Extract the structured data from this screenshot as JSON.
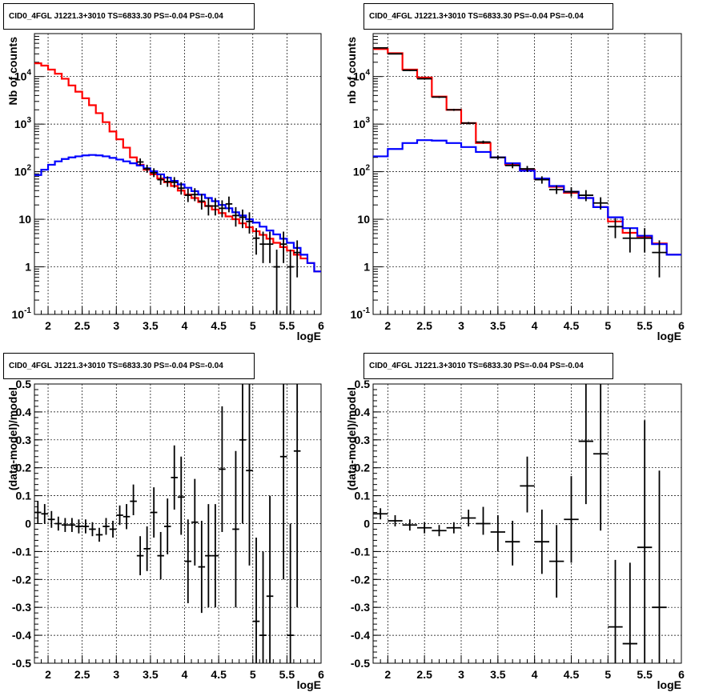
{
  "chart_data": [
    {
      "type": "step-line",
      "title": "CID0_4FGL J1221.3+3010 TS=6833.30 PS=-0.04 PS=-0.04",
      "xlabel": "logE",
      "ylabel": "Nb of counts",
      "yscale": "log",
      "xlim": [
        1.8,
        6.0
      ],
      "ylim": [
        0.1,
        80000
      ],
      "xticks": [
        "2",
        "2.5",
        "3",
        "3.5",
        "4",
        "4.5",
        "5",
        "5.5",
        "6"
      ],
      "yticks": [
        {
          "v": 0.1,
          "t": "10^-1"
        },
        {
          "v": 1,
          "t": "1"
        },
        {
          "v": 10,
          "t": "10"
        },
        {
          "v": 100,
          "t": "10^2"
        },
        {
          "v": 1000,
          "t": "10^3"
        },
        {
          "v": 10000,
          "t": "10^4"
        }
      ],
      "grid": true,
      "series": [
        {
          "color": "#ff0000",
          "edges": [
            1.8,
            1.9,
            2.0,
            2.1,
            2.2,
            2.3,
            2.4,
            2.5,
            2.6,
            2.7,
            2.8,
            2.9,
            3.0,
            3.1,
            3.2,
            3.3,
            3.4,
            3.5,
            3.6,
            3.7,
            3.8,
            3.9,
            4.0,
            4.1,
            4.2,
            4.3,
            4.4,
            4.5,
            4.6,
            4.7,
            4.8,
            4.9,
            5.0,
            5.1,
            5.2,
            5.3,
            5.4,
            5.5,
            5.6,
            5.7,
            5.8,
            5.9,
            6.0
          ],
          "values": [
            19000,
            17000,
            14000,
            11500,
            9000,
            6500,
            4800,
            3500,
            2500,
            1700,
            1100,
            700,
            480,
            320,
            200,
            140,
            110,
            88,
            72,
            60,
            50,
            40,
            33,
            28,
            23,
            19,
            16,
            13.5,
            11.5,
            10,
            8.2,
            6.8,
            5.6,
            4.7,
            3.9,
            3.2,
            2.6,
            2.2,
            1.8,
            1.5,
            1.2,
            0.8
          ]
        },
        {
          "color": "#0000ff",
          "edges": [
            1.8,
            1.9,
            2.0,
            2.1,
            2.2,
            2.3,
            2.4,
            2.5,
            2.6,
            2.7,
            2.8,
            2.9,
            3.0,
            3.1,
            3.2,
            3.3,
            3.4,
            3.5,
            3.6,
            3.7,
            3.8,
            3.9,
            4.0,
            4.1,
            4.2,
            4.3,
            4.4,
            4.5,
            4.6,
            4.7,
            4.8,
            4.9,
            5.0,
            5.1,
            5.2,
            5.3,
            5.4,
            5.5,
            5.6,
            5.7,
            5.8,
            5.9,
            6.0
          ],
          "values": [
            85,
            110,
            140,
            165,
            185,
            200,
            210,
            220,
            225,
            220,
            210,
            195,
            180,
            165,
            150,
            135,
            118,
            102,
            88,
            75,
            64,
            54,
            46,
            39,
            33,
            28,
            24,
            20,
            17,
            14,
            12,
            10,
            8.5,
            7,
            5.8,
            4.8,
            3.9,
            3.2,
            2.5,
            1.8,
            1.2,
            0.8
          ]
        }
      ],
      "points": [
        {
          "x": 3.35,
          "y": 160,
          "lo": 135,
          "hi": 190
        },
        {
          "x": 3.45,
          "y": 115,
          "lo": 95,
          "hi": 140
        },
        {
          "x": 3.55,
          "y": 95,
          "lo": 77,
          "hi": 118
        },
        {
          "x": 3.65,
          "y": 68,
          "lo": 53,
          "hi": 86
        },
        {
          "x": 3.75,
          "y": 62,
          "lo": 48,
          "hi": 80
        },
        {
          "x": 3.85,
          "y": 60,
          "lo": 46,
          "hi": 77
        },
        {
          "x": 3.95,
          "y": 45,
          "lo": 33,
          "hi": 60
        },
        {
          "x": 4.05,
          "y": 32,
          "lo": 23,
          "hi": 44
        },
        {
          "x": 4.15,
          "y": 33,
          "lo": 24,
          "hi": 45
        },
        {
          "x": 4.25,
          "y": 24,
          "lo": 16,
          "hi": 34
        },
        {
          "x": 4.35,
          "y": 19,
          "lo": 12,
          "hi": 28
        },
        {
          "x": 4.45,
          "y": 19,
          "lo": 12,
          "hi": 28
        },
        {
          "x": 4.55,
          "y": 17,
          "lo": 11,
          "hi": 25
        },
        {
          "x": 4.65,
          "y": 21,
          "lo": 14,
          "hi": 30
        },
        {
          "x": 4.75,
          "y": 12,
          "lo": 7,
          "hi": 18
        },
        {
          "x": 4.85,
          "y": 11,
          "lo": 6.5,
          "hi": 16
        },
        {
          "x": 4.95,
          "y": 9,
          "lo": 5,
          "hi": 14
        },
        {
          "x": 5.05,
          "y": 4,
          "lo": 1.8,
          "hi": 6.5
        },
        {
          "x": 5.15,
          "y": 3,
          "lo": 1.2,
          "hi": 5.5
        },
        {
          "x": 5.25,
          "y": 3,
          "lo": 1.2,
          "hi": 5.5
        },
        {
          "x": 5.35,
          "y": 1,
          "lo": 0.1,
          "hi": 2.3
        },
        {
          "x": 5.45,
          "y": 3,
          "lo": 1.2,
          "hi": 5.5
        },
        {
          "x": 5.55,
          "y": 1,
          "lo": 0.1,
          "hi": 2.3
        },
        {
          "x": 5.65,
          "y": 2,
          "lo": 0.6,
          "hi": 3.6
        }
      ]
    },
    {
      "type": "step-line",
      "title": "CID0_4FGL J1221.3+3010 TS=6833.30 PS=-0.04 PS=-0.04",
      "xlabel": "logE",
      "ylabel": "nb of counts",
      "yscale": "log",
      "xlim": [
        1.8,
        6.0
      ],
      "ylim": [
        0.1,
        80000
      ],
      "xticks": [
        "2",
        "2.5",
        "3",
        "3.5",
        "4",
        "4.5",
        "5",
        "5.5",
        "6"
      ],
      "yticks": [
        {
          "v": 0.1,
          "t": "10^-1"
        },
        {
          "v": 1,
          "t": "1"
        },
        {
          "v": 10,
          "t": "10"
        },
        {
          "v": 100,
          "t": "10^2"
        },
        {
          "v": 1000,
          "t": "10^3"
        },
        {
          "v": 10000,
          "t": "10^4"
        }
      ],
      "grid": true,
      "series": [
        {
          "color": "#ff0000",
          "edges": [
            1.8,
            2.0,
            2.2,
            2.4,
            2.6,
            2.8,
            3.0,
            3.2,
            3.4,
            3.6,
            3.8,
            4.0,
            4.2,
            4.4,
            4.6,
            4.8,
            5.0,
            5.2,
            5.4,
            5.6,
            5.8,
            6.0
          ],
          "values": [
            38000,
            31000,
            14000,
            9500,
            3800,
            2000,
            1050,
            400,
            200,
            140,
            110,
            70,
            48,
            36,
            28,
            18,
            9,
            5.2,
            4.2,
            3.1,
            1.8
          ]
        },
        {
          "color": "#0000ff",
          "edges": [
            1.8,
            2.0,
            2.2,
            2.4,
            2.6,
            2.8,
            3.0,
            3.2,
            3.4,
            3.6,
            3.8,
            4.0,
            4.2,
            4.4,
            4.6,
            4.8,
            5.0,
            5.2,
            5.4,
            5.6,
            5.8,
            6.0
          ],
          "values": [
            210,
            300,
            400,
            460,
            450,
            400,
            330,
            260,
            200,
            150,
            105,
            72,
            50,
            38,
            28,
            18,
            11,
            6.5,
            4.5,
            3,
            1.8
          ]
        }
      ],
      "points": [
        {
          "x": 1.9,
          "y": 40000,
          "lo": 39000,
          "hi": 41000
        },
        {
          "x": 2.1,
          "y": 30000,
          "lo": 29300,
          "hi": 30700
        },
        {
          "x": 2.3,
          "y": 13500,
          "lo": 13000,
          "hi": 14000
        },
        {
          "x": 2.5,
          "y": 9000,
          "lo": 8700,
          "hi": 9300
        },
        {
          "x": 2.7,
          "y": 3700,
          "lo": 3550,
          "hi": 3850
        },
        {
          "x": 2.9,
          "y": 2000,
          "lo": 1900,
          "hi": 2100
        },
        {
          "x": 3.1,
          "y": 1050,
          "lo": 990,
          "hi": 1110
        },
        {
          "x": 3.3,
          "y": 420,
          "lo": 390,
          "hi": 450
        },
        {
          "x": 3.5,
          "y": 200,
          "lo": 180,
          "hi": 220
        },
        {
          "x": 3.7,
          "y": 135,
          "lo": 118,
          "hi": 152
        },
        {
          "x": 3.9,
          "y": 115,
          "lo": 100,
          "hi": 132
        },
        {
          "x": 4.1,
          "y": 68,
          "lo": 56,
          "hi": 80
        },
        {
          "x": 4.3,
          "y": 42,
          "lo": 34,
          "hi": 52
        },
        {
          "x": 4.5,
          "y": 38,
          "lo": 30,
          "hi": 47
        },
        {
          "x": 4.7,
          "y": 32,
          "lo": 24,
          "hi": 41
        },
        {
          "x": 4.9,
          "y": 22,
          "lo": 16,
          "hi": 29
        },
        {
          "x": 5.1,
          "y": 7,
          "lo": 4,
          "hi": 10.5
        },
        {
          "x": 5.3,
          "y": 4,
          "lo": 2,
          "hi": 6.5
        },
        {
          "x": 5.5,
          "y": 4,
          "lo": 2,
          "hi": 6.5
        },
        {
          "x": 5.7,
          "y": 2,
          "lo": 0.6,
          "hi": 3.6
        }
      ]
    },
    {
      "type": "scatter",
      "title": "CID0_4FGL J1221.3+3010 TS=6833.30 PS=-0.04 PS=-0.04",
      "xlabel": "logE",
      "ylabel": "(data-model)/model",
      "xlim": [
        1.8,
        6.0
      ],
      "ylim": [
        -0.5,
        0.5
      ],
      "xticks": [
        "2",
        "2.5",
        "3",
        "3.5",
        "4",
        "4.5",
        "5",
        "5.5",
        "6"
      ],
      "yticks": [
        "-0.5",
        "-0.4",
        "-0.3",
        "-0.2",
        "-0.1",
        "0",
        "0.1",
        "0.2",
        "0.3",
        "0.4",
        "0.5"
      ],
      "grid": true,
      "xerr": 0.05,
      "points": [
        {
          "x": 1.85,
          "y": 0.04,
          "lo": 0.0,
          "hi": 0.08
        },
        {
          "x": 1.95,
          "y": 0.035,
          "lo": 0.0,
          "hi": 0.07
        },
        {
          "x": 2.05,
          "y": 0.015,
          "lo": -0.015,
          "hi": 0.045
        },
        {
          "x": 2.15,
          "y": 0.0,
          "lo": -0.025,
          "hi": 0.025
        },
        {
          "x": 2.25,
          "y": -0.005,
          "lo": -0.03,
          "hi": 0.02
        },
        {
          "x": 2.35,
          "y": -0.005,
          "lo": -0.03,
          "hi": 0.02
        },
        {
          "x": 2.45,
          "y": -0.01,
          "lo": -0.035,
          "hi": 0.015
        },
        {
          "x": 2.55,
          "y": -0.01,
          "lo": -0.035,
          "hi": 0.015
        },
        {
          "x": 2.65,
          "y": -0.02,
          "lo": -0.045,
          "hi": 0.005
        },
        {
          "x": 2.75,
          "y": -0.04,
          "lo": -0.065,
          "hi": -0.015
        },
        {
          "x": 2.85,
          "y": -0.01,
          "lo": -0.04,
          "hi": 0.02
        },
        {
          "x": 2.95,
          "y": -0.02,
          "lo": -0.05,
          "hi": 0.01
        },
        {
          "x": 3.05,
          "y": 0.03,
          "lo": -0.005,
          "hi": 0.065
        },
        {
          "x": 3.15,
          "y": 0.025,
          "lo": -0.02,
          "hi": 0.07
        },
        {
          "x": 3.25,
          "y": 0.08,
          "lo": 0.03,
          "hi": 0.14
        },
        {
          "x": 3.35,
          "y": -0.115,
          "lo": -0.185,
          "hi": -0.045
        },
        {
          "x": 3.45,
          "y": -0.09,
          "lo": -0.17,
          "hi": -0.01
        },
        {
          "x": 3.55,
          "y": 0.04,
          "lo": -0.05,
          "hi": 0.13
        },
        {
          "x": 3.65,
          "y": -0.115,
          "lo": -0.2,
          "hi": -0.03
        },
        {
          "x": 3.75,
          "y": -0.01,
          "lo": -0.11,
          "hi": 0.09
        },
        {
          "x": 3.85,
          "y": 0.165,
          "lo": 0.05,
          "hi": 0.28
        },
        {
          "x": 3.95,
          "y": 0.095,
          "lo": -0.04,
          "hi": 0.24
        },
        {
          "x": 4.05,
          "y": -0.135,
          "lo": -0.285,
          "hi": 0.015
        },
        {
          "x": 4.15,
          "y": 0.005,
          "lo": -0.15,
          "hi": 0.16
        },
        {
          "x": 4.25,
          "y": -0.155,
          "lo": -0.32,
          "hi": 0.01
        },
        {
          "x": 4.35,
          "y": -0.115,
          "lo": -0.3,
          "hi": 0.07
        },
        {
          "x": 4.45,
          "y": -0.115,
          "lo": -0.3,
          "hi": 0.07
        },
        {
          "x": 4.55,
          "y": 0.195,
          "lo": -0.03,
          "hi": 0.42
        },
        {
          "x": 4.75,
          "y": -0.02,
          "lo": -0.3,
          "hi": 0.26
        },
        {
          "x": 4.85,
          "y": 0.3,
          "lo": 0.0,
          "hi": 0.5
        },
        {
          "x": 4.95,
          "y": 0.19,
          "lo": -0.15,
          "hi": 0.5
        },
        {
          "x": 5.05,
          "y": -0.35,
          "lo": -0.5,
          "hi": -0.05
        },
        {
          "x": 5.15,
          "y": -0.4,
          "lo": -0.5,
          "hi": -0.1
        },
        {
          "x": 5.25,
          "y": -0.26,
          "lo": -0.5,
          "hi": 0.1
        },
        {
          "x": 5.45,
          "y": 0.24,
          "lo": -0.2,
          "hi": 0.5
        },
        {
          "x": 5.55,
          "y": -0.4,
          "lo": -0.5,
          "hi": 0.0
        },
        {
          "x": 5.65,
          "y": 0.26,
          "lo": -0.3,
          "hi": 0.5
        }
      ]
    },
    {
      "type": "scatter",
      "title": "CID0_4FGL J1221.3+3010 TS=6833.30 PS=-0.04 PS=-0.04",
      "xlabel": "logE",
      "ylabel": "(data-model)/model",
      "xlim": [
        1.8,
        6.0
      ],
      "ylim": [
        -0.5,
        0.5
      ],
      "xticks": [
        "2",
        "2.5",
        "3",
        "3.5",
        "4",
        "4.5",
        "5",
        "5.5",
        "6"
      ],
      "yticks": [
        "-0.5",
        "-0.4",
        "-0.3",
        "-0.2",
        "-0.1",
        "0",
        "0.1",
        "0.2",
        "0.3",
        "0.4",
        "0.5"
      ],
      "grid": true,
      "xerr": 0.1,
      "points": [
        {
          "x": 1.9,
          "y": 0.035,
          "lo": 0.015,
          "hi": 0.055
        },
        {
          "x": 2.1,
          "y": 0.01,
          "lo": -0.01,
          "hi": 0.03
        },
        {
          "x": 2.3,
          "y": -0.005,
          "lo": -0.025,
          "hi": 0.015
        },
        {
          "x": 2.5,
          "y": -0.015,
          "lo": -0.035,
          "hi": 0.005
        },
        {
          "x": 2.7,
          "y": -0.025,
          "lo": -0.045,
          "hi": -0.005
        },
        {
          "x": 2.9,
          "y": -0.015,
          "lo": -0.035,
          "hi": 0.005
        },
        {
          "x": 3.1,
          "y": 0.02,
          "lo": -0.01,
          "hi": 0.05
        },
        {
          "x": 3.3,
          "y": 0.0,
          "lo": -0.04,
          "hi": 0.06
        },
        {
          "x": 3.5,
          "y": -0.03,
          "lo": -0.1,
          "hi": 0.03
        },
        {
          "x": 3.7,
          "y": -0.065,
          "lo": -0.15,
          "hi": 0.01
        },
        {
          "x": 3.9,
          "y": 0.135,
          "lo": 0.04,
          "hi": 0.24
        },
        {
          "x": 4.1,
          "y": -0.065,
          "lo": -0.18,
          "hi": 0.05
        },
        {
          "x": 4.3,
          "y": -0.135,
          "lo": -0.265,
          "hi": -0.005
        },
        {
          "x": 4.5,
          "y": 0.015,
          "lo": -0.14,
          "hi": 0.17
        },
        {
          "x": 4.7,
          "y": 0.295,
          "lo": 0.07,
          "hi": 0.5
        },
        {
          "x": 4.9,
          "y": 0.25,
          "lo": -0.025,
          "hi": 0.5
        },
        {
          "x": 5.1,
          "y": -0.37,
          "lo": -0.5,
          "hi": -0.13
        },
        {
          "x": 5.3,
          "y": -0.43,
          "lo": -0.5,
          "hi": -0.14
        },
        {
          "x": 5.5,
          "y": -0.085,
          "lo": -0.5,
          "hi": 0.37
        },
        {
          "x": 5.7,
          "y": -0.3,
          "lo": -0.5,
          "hi": 0.19
        }
      ]
    }
  ]
}
